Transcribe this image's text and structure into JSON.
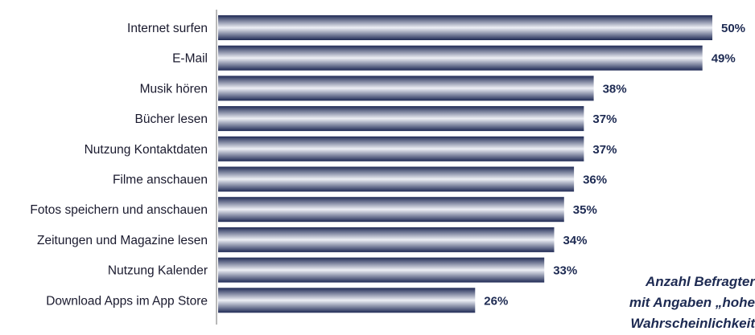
{
  "chart_data": {
    "type": "bar",
    "orientation": "horizontal",
    "categories": [
      "Internet surfen",
      "E-Mail",
      "Musik hören",
      "Bücher lesen",
      "Nutzung Kontaktdaten",
      "Filme anschauen",
      "Fotos speichern und anschauen",
      "Zeitungen und Magazine lesen",
      "Nutzung Kalender",
      "Download Apps im App Store"
    ],
    "values": [
      50,
      49,
      38,
      37,
      37,
      36,
      35,
      34,
      33,
      26
    ],
    "value_labels": [
      "50%",
      "49%",
      "38%",
      "37%",
      "37%",
      "36%",
      "35%",
      "34%",
      "33%",
      "26%"
    ],
    "unit": "%",
    "xlim": [
      0,
      50
    ],
    "grid": false,
    "legend": "none",
    "bar_colors": [
      "#1f2a55",
      "#eef0f6"
    ],
    "annotation_lines": [
      "Anzahl Befragter",
      "mit Angaben „hohe",
      "Wahrscheinlichkeit"
    ]
  }
}
